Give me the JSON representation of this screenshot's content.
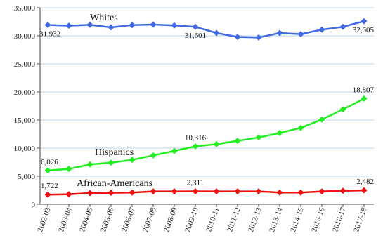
{
  "chart_data": {
    "type": "line",
    "title": "",
    "xlabel": "",
    "ylabel": "",
    "ylim": [
      0,
      35000
    ],
    "yticks": [
      0,
      5000,
      10000,
      15000,
      20000,
      25000,
      30000,
      35000
    ],
    "ytick_labels": [
      "0",
      "5,000",
      "10,000",
      "15,000",
      "20,000",
      "25,000",
      "30,000",
      "35,000"
    ],
    "grid": true,
    "legend": "none",
    "categories": [
      "2002-03",
      "2003-04",
      "2004-05",
      "2005-06",
      "2006-07",
      "2007-08",
      "2008-09",
      "2009-10",
      "2010-11",
      "2011-12",
      "2012-13",
      "2013-14",
      "2014-15",
      "2015-16",
      "2016-17",
      "2017-18"
    ],
    "series": [
      {
        "name": "Whites",
        "color": "#4169e1",
        "values": [
          31932,
          31800,
          31950,
          31500,
          31900,
          32000,
          31850,
          31601,
          30500,
          29800,
          29700,
          30500,
          30300,
          31100,
          31600,
          32605
        ],
        "annotations": [
          {
            "index": 0,
            "text": "31,932"
          },
          {
            "index": 7,
            "text": "31,601"
          },
          {
            "index": 15,
            "text": "32,605"
          }
        ]
      },
      {
        "name": "Hispanics",
        "color": "#22ee22",
        "values": [
          6026,
          6300,
          7100,
          7400,
          7900,
          8700,
          9500,
          10316,
          10700,
          11300,
          11900,
          12700,
          13600,
          15100,
          16900,
          18807
        ],
        "annotations": [
          {
            "index": 0,
            "text": "6,026"
          },
          {
            "index": 7,
            "text": "10,316"
          },
          {
            "index": 15,
            "text": "18,807"
          }
        ]
      },
      {
        "name": "African-Americans",
        "color": "#ee1111",
        "values": [
          1722,
          1800,
          2000,
          2050,
          2100,
          2300,
          2300,
          2311,
          2300,
          2300,
          2300,
          2100,
          2100,
          2300,
          2400,
          2482
        ],
        "annotations": [
          {
            "index": 0,
            "text": "1,722"
          },
          {
            "index": 7,
            "text": "2,311"
          },
          {
            "index": 15,
            "text": "2,482"
          }
        ]
      }
    ]
  }
}
